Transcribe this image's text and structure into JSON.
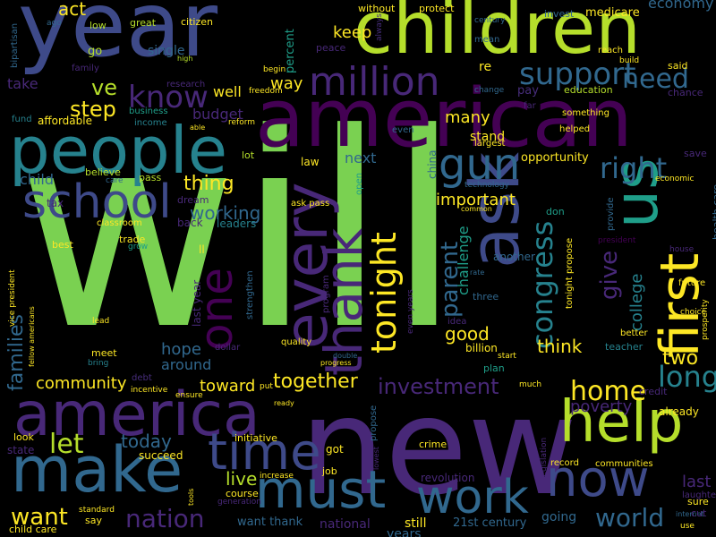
{
  "palette": {
    "background": "#000000",
    "green": "#7ad151",
    "lime": "#b5de2b",
    "yellow": "#fde725",
    "purple": "#440154",
    "indigo": "#482878",
    "blue": "#3e4a89",
    "slate": "#31688e",
    "teal": "#26828e",
    "seafoam": "#1f9e89",
    "emerald": "#35b779",
    "violet": "#472d7b"
  },
  "words": [
    "will",
    "new",
    "year",
    "children",
    "american",
    "people",
    "america",
    "make",
    "must",
    "help",
    "every",
    "ask",
    "us",
    "gun",
    "first",
    "school",
    "thank",
    "one",
    "time",
    "work",
    "now",
    "million",
    "tonight",
    "support",
    "know",
    "need",
    "ve",
    "right",
    "congress",
    "step",
    "let",
    "home",
    "parent",
    "long",
    "want",
    "nation",
    "world",
    "give",
    "investment",
    "families",
    "together",
    "today",
    "live",
    "last",
    "good",
    "community",
    "college",
    "hope",
    "two",
    "think",
    "poverty",
    "toward",
    "around",
    "thing",
    "working",
    "important",
    "next",
    "challenge",
    "many",
    "stand",
    "budget",
    "keep",
    "well",
    "way",
    "act",
    "economy",
    "percent",
    "medicare",
    "invest",
    "protect",
    "without",
    "citizen",
    "great",
    "low",
    "go",
    "single",
    "family",
    "take",
    "research",
    "freedom",
    "begin",
    "peace",
    "education",
    "pay",
    "chance",
    "said",
    "reach",
    "build",
    "mean",
    "century",
    "always",
    "bipartisan",
    "ago",
    "high",
    "business",
    "fund",
    "affordable",
    "income",
    "able",
    "reform",
    "even",
    "far",
    "something",
    "helped",
    "largest",
    "change",
    "re",
    "china",
    "law",
    "opportunity",
    "save",
    "lot",
    "pass",
    "child",
    "believe",
    "care",
    "tax",
    "dream",
    "back",
    "leaders",
    "classroom",
    "trade",
    "grow",
    "best",
    "ll",
    "economic",
    "technology",
    "don",
    "common",
    "ask pass",
    "open",
    "another",
    "provide",
    "health care",
    "president",
    "house",
    "future",
    "rate",
    "three",
    "program",
    "tonight propose",
    "choice",
    "prosperity",
    "better",
    "teacher",
    "last year",
    "strengthen",
    "dollar",
    "quality",
    "billion",
    "start",
    "plan",
    "meet",
    "bring",
    "debt",
    "incentive",
    "double",
    "progress",
    "put",
    "ensure",
    "credit",
    "already",
    "much",
    "idea",
    "lead",
    "vice president",
    "fellow americans",
    "even years",
    "propose",
    "lowest",
    "ready",
    "look",
    "state",
    "succeed",
    "initiative",
    "got",
    "crime",
    "revolution",
    "job",
    "increase",
    "course",
    "generation",
    "tools",
    "want thank",
    "standard",
    "say",
    "child care",
    "national",
    "still",
    "21st century",
    "going",
    "legislation",
    "record",
    "communities",
    "laughter",
    "internet",
    "sure",
    "cut",
    "use",
    "years"
  ]
}
